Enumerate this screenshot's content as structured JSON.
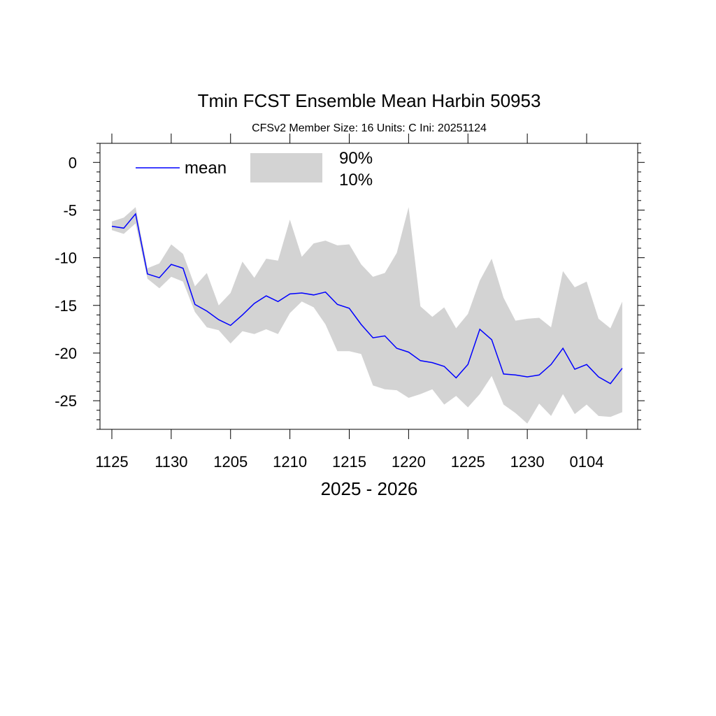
{
  "chart_data": {
    "type": "area",
    "title": "Tmin FCST Ensemble Mean  Harbin 50953",
    "subtitle": "CFSv2   Member Size: 16   Units: C   Ini: 20251124",
    "xlabel": "2025 - 2026",
    "ylabel": "",
    "ylim": [
      -28,
      2
    ],
    "y_ticks": [
      0,
      -5,
      -10,
      -15,
      -20,
      -25
    ],
    "y_tick_labels": [
      "0",
      "-5",
      "-10",
      "-15",
      "-20",
      "-25"
    ],
    "x_ticks": [
      0,
      5,
      10,
      15,
      20,
      25,
      30,
      35,
      40
    ],
    "x_tick_labels": [
      "1125",
      "1130",
      "1205",
      "1210",
      "1215",
      "1220",
      "1225",
      "1230",
      "0104"
    ],
    "x_range": [
      -1,
      44.3
    ],
    "grid": false,
    "legend": {
      "placement": "top-left",
      "line_label": "mean",
      "band_upper_label": "90%",
      "band_lower_label": "10%"
    },
    "colors": {
      "mean_line": "#0000ff",
      "band_fill": "#d3d3d3",
      "axes": "#000000"
    },
    "series": [
      {
        "name": "mean",
        "values": [
          -6.7,
          -6.9,
          -5.4,
          -11.7,
          -12.1,
          -10.7,
          -11.1,
          -14.9,
          -15.6,
          -16.5,
          -17.1,
          -16.0,
          -14.8,
          -14.0,
          -14.6,
          -13.8,
          -13.7,
          -13.9,
          -13.6,
          -14.9,
          -15.3,
          -17.0,
          -18.4,
          -18.2,
          -19.5,
          -19.9,
          -20.8,
          -21.0,
          -21.4,
          -22.6,
          -21.2,
          -17.5,
          -18.6,
          -22.2,
          -22.3,
          -22.5,
          -22.3,
          -21.2,
          -19.5,
          -21.7,
          -21.2,
          -22.5,
          -23.2,
          -21.6
        ]
      },
      {
        "name": "90%",
        "values": [
          -6.2,
          -5.8,
          -4.7,
          -11.1,
          -10.6,
          -8.6,
          -9.6,
          -13.0,
          -11.6,
          -15.0,
          -13.7,
          -10.4,
          -12.1,
          -10.1,
          -10.3,
          -6.0,
          -9.9,
          -8.5,
          -8.2,
          -8.7,
          -8.6,
          -10.7,
          -12.0,
          -11.6,
          -9.5,
          -4.7,
          -15.1,
          -16.2,
          -15.2,
          -17.4,
          -15.9,
          -12.4,
          -10.1,
          -14.2,
          -16.6,
          -16.4,
          -16.3,
          -17.3,
          -11.4,
          -13.1,
          -12.5,
          -16.4,
          -17.4,
          -14.6
        ]
      },
      {
        "name": "10%",
        "values": [
          -7.1,
          -7.5,
          -6.4,
          -12.2,
          -13.2,
          -12.0,
          -12.5,
          -15.7,
          -17.3,
          -17.6,
          -19.0,
          -17.7,
          -18.0,
          -17.5,
          -18.0,
          -15.8,
          -14.6,
          -15.2,
          -17.0,
          -19.8,
          -19.8,
          -20.1,
          -23.4,
          -23.8,
          -23.9,
          -24.7,
          -24.3,
          -23.8,
          -25.4,
          -24.5,
          -25.7,
          -24.3,
          -22.4,
          -25.4,
          -26.3,
          -27.4,
          -25.3,
          -26.6,
          -24.3,
          -26.4,
          -25.4,
          -26.6,
          -26.7,
          -26.2
        ]
      }
    ]
  }
}
